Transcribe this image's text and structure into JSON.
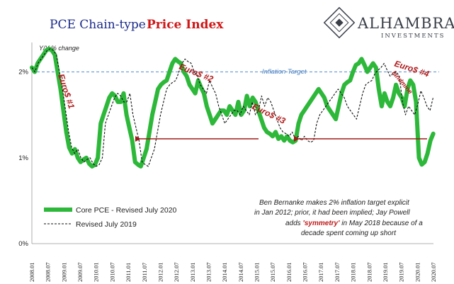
{
  "chart_data": {
    "type": "line",
    "title_part1": "PCE Chain-type",
    "title_part2": "Price Index",
    "subtitle": "Y/Y % change",
    "y_ticks": [
      "0%",
      "1%",
      "2%"
    ],
    "ylim": [
      0,
      2.4
    ],
    "x_ticks": [
      "2008.01",
      "2008.07",
      "2009.01",
      "2009.07",
      "2010.01",
      "2010.07",
      "2011.01",
      "2011.07",
      "2012.01",
      "2012.07",
      "2013.01",
      "2013.07",
      "2014.01",
      "2014.07",
      "2015.01",
      "2015.07",
      "2016.01",
      "2016.07",
      "2017.01",
      "2017.07",
      "2018.01",
      "2018.07",
      "2019.01",
      "2019.07",
      "2020.01",
      "2020.07"
    ],
    "target_value": 2.0,
    "series": [
      {
        "name": "Core PCE - Revised July 2020",
        "color": "#2db83a",
        "style": "thick",
        "values": [
          2.05,
          2.0,
          2.1,
          2.15,
          2.2,
          2.25,
          2.27,
          2.25,
          2.2,
          2.0,
          1.8,
          1.55,
          1.3,
          1.12,
          1.05,
          1.1,
          1.0,
          0.95,
          0.98,
          1.0,
          0.93,
          0.9,
          0.92,
          1.0,
          1.4,
          1.5,
          1.6,
          1.7,
          1.75,
          1.72,
          1.65,
          1.65,
          1.75,
          1.5,
          1.35,
          1.2,
          0.95,
          0.92,
          0.9,
          1.0,
          1.1,
          1.3,
          1.5,
          1.65,
          1.8,
          1.85,
          1.88,
          1.9,
          2.0,
          2.1,
          2.15,
          2.12,
          2.1,
          2.0,
          1.95,
          1.85,
          1.8,
          1.75,
          1.9,
          1.82,
          1.75,
          1.6,
          1.5,
          1.4,
          1.45,
          1.5,
          1.55,
          1.55,
          1.5,
          1.6,
          1.55,
          1.5,
          1.65,
          1.5,
          1.55,
          1.72,
          1.6,
          1.7,
          1.65,
          1.55,
          1.45,
          1.35,
          1.3,
          1.28,
          1.25,
          1.3,
          1.22,
          1.25,
          1.2,
          1.25,
          1.2,
          1.18,
          1.2,
          1.4,
          1.5,
          1.55,
          1.6,
          1.65,
          1.7,
          1.75,
          1.8,
          1.75,
          1.7,
          1.6,
          1.55,
          1.5,
          1.45,
          1.6,
          1.75,
          1.85,
          1.88,
          1.9,
          2.0,
          2.08,
          2.1,
          2.15,
          2.08,
          2.0,
          2.05,
          2.1,
          2.05,
          1.8,
          1.6,
          1.75,
          1.65,
          1.6,
          1.7,
          1.85,
          1.75,
          1.7,
          1.6,
          1.8,
          1.9,
          1.85,
          1.65,
          1.0,
          0.92,
          0.95,
          1.05,
          1.2,
          1.28
        ]
      },
      {
        "name": "Revised July 2019",
        "color": "#111111",
        "style": "dashed",
        "values": [
          2.05,
          2.0,
          2.1,
          2.15,
          2.2,
          2.25,
          2.27,
          2.25,
          2.2,
          2.0,
          1.8,
          1.55,
          1.3,
          1.12,
          1.05,
          1.1,
          1.0,
          0.95,
          0.98,
          1.0,
          0.93,
          0.9,
          0.92,
          1.0,
          1.4,
          1.5,
          1.6,
          1.7,
          1.75,
          1.72,
          1.65,
          1.65,
          1.75,
          1.5,
          1.35,
          1.2,
          0.95,
          0.92,
          0.9,
          1.0,
          1.1,
          1.3,
          1.5,
          1.65,
          1.8,
          1.85,
          1.88,
          1.9,
          2.0,
          2.1,
          2.15,
          2.12,
          2.1,
          2.0,
          1.95,
          1.85,
          1.8,
          1.75,
          1.9,
          1.82,
          1.75,
          1.6,
          1.5,
          1.4,
          1.45,
          1.5,
          1.55,
          1.55,
          1.5,
          1.6,
          1.55,
          1.5,
          1.65,
          1.5,
          1.55,
          1.72,
          1.6,
          1.7,
          1.65,
          1.55,
          1.45,
          1.35,
          1.3,
          1.28,
          1.25,
          1.3,
          1.22,
          1.25,
          1.2,
          1.25,
          1.2,
          1.18,
          1.2,
          1.4,
          1.5,
          1.55,
          1.6,
          1.65,
          1.7,
          1.75,
          1.8,
          1.75,
          1.7,
          1.6,
          1.55,
          1.5,
          1.45,
          1.6,
          1.75,
          1.85,
          1.88,
          1.9,
          1.98,
          2.02,
          2.05,
          2.1,
          2.02,
          1.95,
          1.98,
          2.0,
          1.95,
          1.65,
          1.5,
          1.6,
          1.55,
          1.5,
          1.62,
          1.78,
          1.7,
          1.6,
          1.55,
          1.7
        ]
      }
    ],
    "annotations": {
      "inflation_target": "Inflation Target",
      "euro1": "Euro$ #1",
      "euro2": "Euro$ #2",
      "euro3": "Euro$ #3",
      "euro4": "Euro$ #4",
      "landmine": "landmine",
      "note_line1": "Ben Bernanke makes 2% inflation target explicit",
      "note_line2": "in Jan 2012; prior, it had been implied; Jay Powell",
      "note_line3a": "adds ",
      "note_line3b": "'symmetry'",
      "note_line3c": " in May 2018 because of a",
      "note_line4": "decade spent coming up short"
    },
    "arrow_color": "#a01818",
    "target_color": "#6fa0d8"
  },
  "logo": {
    "name": "ALHAMBRA",
    "sub": "INVESTMENTS"
  }
}
